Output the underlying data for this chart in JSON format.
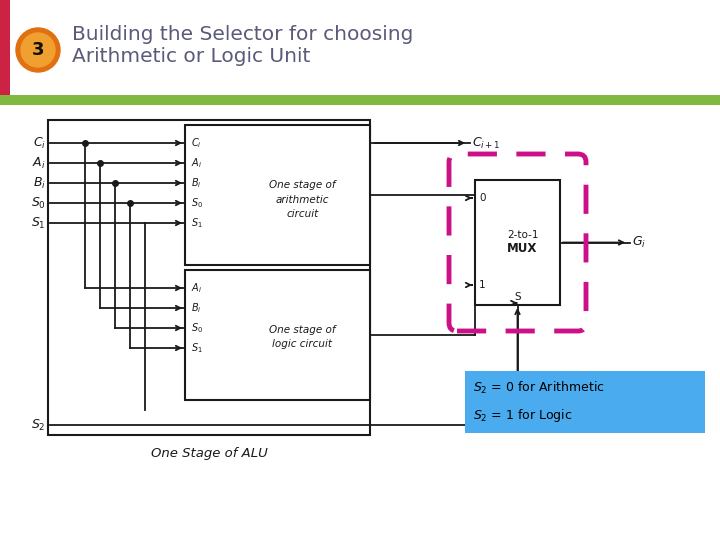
{
  "title_line1": "Building the Selector for choosing",
  "title_line2": "Arithmetic or Logic Unit",
  "title_color": "#5a5a7a",
  "badge_number": "3",
  "badge_color": "#e07010",
  "badge_color2": "#f0a030",
  "green_bar_color": "#80b840",
  "slide_bg": "#ffffff",
  "annotation_bg": "#4aacee",
  "line_color": "#1a1a1a",
  "bottom_label": "One Stage of ALU",
  "dashed_color": "#cc1188"
}
